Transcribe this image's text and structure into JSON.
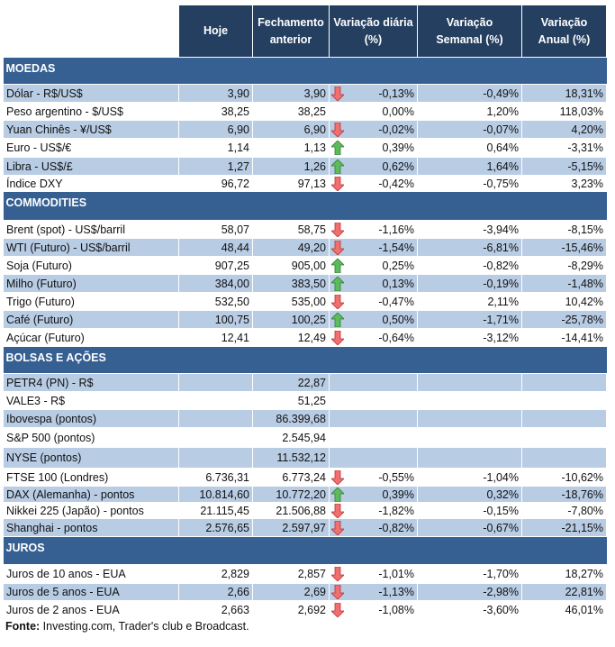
{
  "headers": [
    "",
    "Hoje",
    "Fechamento anterior",
    "Variação diária (%)",
    "Variação Semanal (%)",
    "Variação Anual (%)"
  ],
  "colors": {
    "header": "#243F60",
    "section": "#366092",
    "stripe": "#B8CCE4",
    "up": "#3C9A3C",
    "down": "#E05050"
  },
  "sections": [
    {
      "title": "MOEDAS",
      "height": 30,
      "rows": [
        {
          "label": "Dólar - R$/US$",
          "hoje": "3,90",
          "fech": "3,90",
          "arrow": "down",
          "dia": "-0,13%",
          "sem": "-0,49%",
          "ano": "18,31%",
          "blue": true,
          "h": 20
        },
        {
          "label": "Peso argentino - $/US$",
          "hoje": "38,25",
          "fech": "38,25",
          "arrow": null,
          "dia": "0,00%",
          "sem": "1,20%",
          "ano": "118,03%",
          "blue": false,
          "h": 20
        },
        {
          "label": "Yuan Chinês - ¥/US$",
          "hoje": "6,90",
          "fech": "6,90",
          "arrow": "down",
          "dia": "-0,02%",
          "sem": "-0,07%",
          "ano": "4,20%",
          "blue": true,
          "h": 20
        },
        {
          "label": "Euro - US$/€",
          "hoje": "1,14",
          "fech": "1,13",
          "arrow": "up",
          "dia": "0,39%",
          "sem": "0,64%",
          "ano": "-3,31%",
          "blue": false,
          "h": 21
        },
        {
          "label": "Libra - US$/£",
          "hoje": "1,27",
          "fech": "1,26",
          "arrow": "up",
          "dia": "0,62%",
          "sem": "1,64%",
          "ano": "-5,15%",
          "blue": true,
          "h": 20
        },
        {
          "label": "Índice DXY",
          "hoje": "96,72",
          "fech": "97,13",
          "arrow": "down",
          "dia": "-0,42%",
          "sem": "-0,75%",
          "ano": "3,23%",
          "blue": false,
          "h": 18
        }
      ]
    },
    {
      "title": "COMMODITIES",
      "height": 32,
      "rows": [
        {
          "label": "Brent (spot) - US$/barril",
          "hoje": "58,07",
          "fech": "58,75",
          "arrow": "down",
          "dia": "-1,16%",
          "sem": "-3,94%",
          "ano": "-8,15%",
          "blue": false,
          "h": 20
        },
        {
          "label": "WTI (Futuro) - US$/barril",
          "hoje": "48,44",
          "fech": "49,20",
          "arrow": "down",
          "dia": "-1,54%",
          "sem": "-6,81%",
          "ano": "-15,46%",
          "blue": true,
          "h": 20
        },
        {
          "label": "Soja (Futuro)",
          "hoje": "907,25",
          "fech": "905,00",
          "arrow": "up",
          "dia": "0,25%",
          "sem": "-0,82%",
          "ano": "-8,29%",
          "blue": false,
          "h": 20
        },
        {
          "label": "Milho (Futuro)",
          "hoje": "384,00",
          "fech": "383,50",
          "arrow": "up",
          "dia": "0,13%",
          "sem": "-0,19%",
          "ano": "-1,48%",
          "blue": true,
          "h": 20
        },
        {
          "label": "Trigo (Futuro)",
          "hoje": "532,50",
          "fech": "535,00",
          "arrow": "down",
          "dia": "-0,47%",
          "sem": "2,11%",
          "ano": "10,42%",
          "blue": false,
          "h": 20
        },
        {
          "label": "Café (Futuro)",
          "hoje": "100,75",
          "fech": "100,25",
          "arrow": "up",
          "dia": "0,50%",
          "sem": "-1,71%",
          "ano": "-25,78%",
          "blue": true,
          "h": 20
        },
        {
          "label": "Açúcar (Futuro)",
          "hoje": "12,41",
          "fech": "12,49",
          "arrow": "down",
          "dia": "-0,64%",
          "sem": "-3,12%",
          "ano": "-14,41%",
          "blue": false,
          "h": 20
        }
      ]
    },
    {
      "title": "BOLSAS E AÇÕES",
      "height": 30,
      "rows": [
        {
          "label": "PETR4 (PN) - R$",
          "hoje": "",
          "fech": "22,87",
          "arrow": null,
          "dia": "",
          "sem": "",
          "ano": "",
          "blue": true,
          "h": 20
        },
        {
          "label": "VALE3 - R$",
          "hoje": "",
          "fech": "51,25",
          "arrow": null,
          "dia": "",
          "sem": "",
          "ano": "",
          "blue": false,
          "h": 20
        },
        {
          "label": "Ibovespa (pontos)",
          "hoje": "",
          "fech": "86.399,68",
          "arrow": null,
          "dia": "",
          "sem": "",
          "ano": "",
          "blue": true,
          "h": 20
        },
        {
          "label": "S&P 500 (pontos)",
          "hoje": "",
          "fech": "2.545,94",
          "arrow": null,
          "dia": "",
          "sem": "",
          "ano": "",
          "blue": false,
          "h": 22
        },
        {
          "label": "NYSE (pontos)",
          "hoje": "",
          "fech": "11.532,12",
          "arrow": null,
          "dia": "",
          "sem": "",
          "ano": "",
          "blue": true,
          "h": 23
        },
        {
          "label": "FTSE 100 (Londres)",
          "hoje": "6.736,31",
          "fech": "6.773,24",
          "arrow": "down",
          "dia": "-0,55%",
          "sem": "-1,04%",
          "ano": "-10,62%",
          "blue": false,
          "h": 20
        },
        {
          "label": "DAX (Alemanha) - pontos",
          "hoje": "10.814,60",
          "fech": "10.772,20",
          "arrow": "up",
          "dia": "0,39%",
          "sem": "0,32%",
          "ano": "-18,76%",
          "blue": true,
          "h": 18
        },
        {
          "label": "Nikkei 225 (Japão) - pontos",
          "hoje": "21.115,45",
          "fech": "21.506,88",
          "arrow": "down",
          "dia": "-1,82%",
          "sem": "-0,15%",
          "ano": "-7,80%",
          "blue": false,
          "h": 18
        },
        {
          "label": "Shanghai - pontos",
          "hoje": "2.576,65",
          "fech": "2.597,97",
          "arrow": "down",
          "dia": "-0,82%",
          "sem": "-0,67%",
          "ano": "-21,15%",
          "blue": true,
          "h": 20
        }
      ]
    },
    {
      "title": "JUROS",
      "height": 31,
      "rows": [
        {
          "label": "Juros de 10 anos - EUA",
          "hoje": "2,829",
          "fech": "2,857",
          "arrow": "down",
          "dia": "-1,01%",
          "sem": "-1,70%",
          "ano": "18,27%",
          "blue": false,
          "h": 21
        },
        {
          "label": "Juros de 5 anos - EUA",
          "hoje": "2,66",
          "fech": "2,69",
          "arrow": "down",
          "dia": "-1,13%",
          "sem": "-2,98%",
          "ano": "22,81%",
          "blue": true,
          "h": 19
        },
        {
          "label": "Juros de 2 anos - EUA",
          "hoje": "2,663",
          "fech": "2,692",
          "arrow": "down",
          "dia": "-1,08%",
          "sem": "-3,60%",
          "ano": "46,01%",
          "blue": false,
          "h": 21
        }
      ]
    }
  ],
  "footer": {
    "label": "Fonte:",
    "text": " Investing.com, Trader's club e Broadcast."
  }
}
